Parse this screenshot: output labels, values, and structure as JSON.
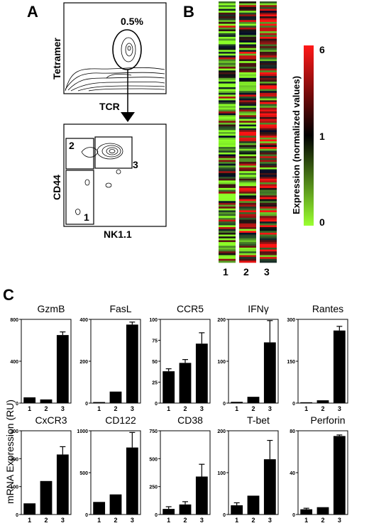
{
  "panel_a": {
    "letter": "A",
    "top_plot": {
      "y_label": "Tetramer",
      "x_label": "TCR",
      "gate_percent": "0.5%"
    },
    "bottom_plot": {
      "y_label": "CD44",
      "x_label": "NK1.1",
      "gates": [
        "2",
        "3",
        "1"
      ]
    }
  },
  "panel_b": {
    "letter": "B",
    "columns": [
      "1",
      "2",
      "3"
    ],
    "legend": {
      "title": "Expression (normalized values)",
      "ticks": [
        "6",
        "1",
        "0"
      ],
      "colors": {
        "high": "#ff2020",
        "mid": "#000000",
        "low": "#90ff30"
      }
    }
  },
  "panel_c": {
    "letter": "C",
    "y_label": "mRNA Expression (RU)",
    "bar_color": "#000000"
  },
  "chart_data": [
    {
      "type": "bar",
      "title": "GzmB",
      "categories": [
        "1",
        "2",
        "3"
      ],
      "values": [
        55,
        35,
        650
      ],
      "errors": [
        0,
        0,
        30
      ],
      "ylim": [
        0,
        800
      ],
      "yticks": [
        "0",
        "400",
        "800"
      ],
      "ytick_values": [
        0,
        400,
        800
      ]
    },
    {
      "type": "bar",
      "title": "FasL",
      "categories": [
        "1",
        "2",
        "3"
      ],
      "values": [
        5,
        55,
        375
      ],
      "errors": [
        0,
        0,
        12
      ],
      "ylim": [
        0,
        400
      ],
      "yticks": [
        "0",
        "200",
        "400"
      ],
      "ytick_values": [
        0,
        200,
        400
      ]
    },
    {
      "type": "bar",
      "title": "CCR5",
      "categories": [
        "1",
        "2",
        "3"
      ],
      "values": [
        38,
        48,
        71
      ],
      "errors": [
        3,
        4,
        13
      ],
      "ylim": [
        0,
        100
      ],
      "yticks": [
        "0",
        "25",
        "50",
        "75",
        "100"
      ],
      "ytick_values": [
        0,
        25,
        50,
        75,
        100
      ]
    },
    {
      "type": "bar",
      "title": "IFNγ",
      "categories": [
        "1",
        "2",
        "3"
      ],
      "values": [
        3,
        15,
        145
      ],
      "errors": [
        0,
        0,
        52
      ],
      "ylim": [
        0,
        200
      ],
      "yticks": [
        "0",
        "100",
        "200"
      ],
      "ytick_values": [
        0,
        100,
        200
      ]
    },
    {
      "type": "bar",
      "title": "Rantes",
      "categories": [
        "1",
        "2",
        "3"
      ],
      "values": [
        3,
        10,
        260
      ],
      "errors": [
        0,
        0,
        15
      ],
      "ylim": [
        0,
        300
      ],
      "yticks": [
        "0",
        "150",
        "300"
      ],
      "ytick_values": [
        0,
        150,
        300
      ]
    },
    {
      "type": "bar",
      "title": "CxCR3",
      "categories": [
        "1",
        "2",
        "3"
      ],
      "values": [
        40,
        120,
        215
      ],
      "errors": [
        0,
        0,
        28
      ],
      "ylim": [
        0,
        300
      ],
      "yticks": [
        "0",
        "100",
        "200",
        "300"
      ],
      "ytick_values": [
        0,
        100,
        200,
        300
      ]
    },
    {
      "type": "bar",
      "title": "CD122",
      "categories": [
        "1",
        "2",
        "3"
      ],
      "values": [
        150,
        240,
        800
      ],
      "errors": [
        0,
        0,
        180
      ],
      "ylim": [
        0,
        1000
      ],
      "yticks": [
        "0",
        "500",
        "1000"
      ],
      "ytick_values": [
        0,
        500,
        1000
      ]
    },
    {
      "type": "bar",
      "title": "CD38",
      "categories": [
        "1",
        "2",
        "3"
      ],
      "values": [
        50,
        90,
        340
      ],
      "errors": [
        20,
        25,
        110
      ],
      "ylim": [
        0,
        750
      ],
      "yticks": [
        "0",
        "250",
        "500",
        "750"
      ],
      "ytick_values": [
        0,
        250,
        500,
        750
      ]
    },
    {
      "type": "bar",
      "title": "T-bet",
      "categories": [
        "1",
        "2",
        "3"
      ],
      "values": [
        22,
        45,
        132
      ],
      "errors": [
        6,
        0,
        45
      ],
      "ylim": [
        0,
        200
      ],
      "yticks": [
        "0",
        "100",
        "200"
      ],
      "ytick_values": [
        0,
        100,
        200
      ]
    },
    {
      "type": "bar",
      "title": "Perforin",
      "categories": [
        "1",
        "2",
        "3"
      ],
      "values": [
        5,
        7,
        75
      ],
      "errors": [
        1,
        0,
        1
      ],
      "ylim": [
        0,
        80
      ],
      "yticks": [
        "0",
        "40",
        "80"
      ],
      "ytick_values": [
        0,
        40,
        80
      ]
    }
  ]
}
